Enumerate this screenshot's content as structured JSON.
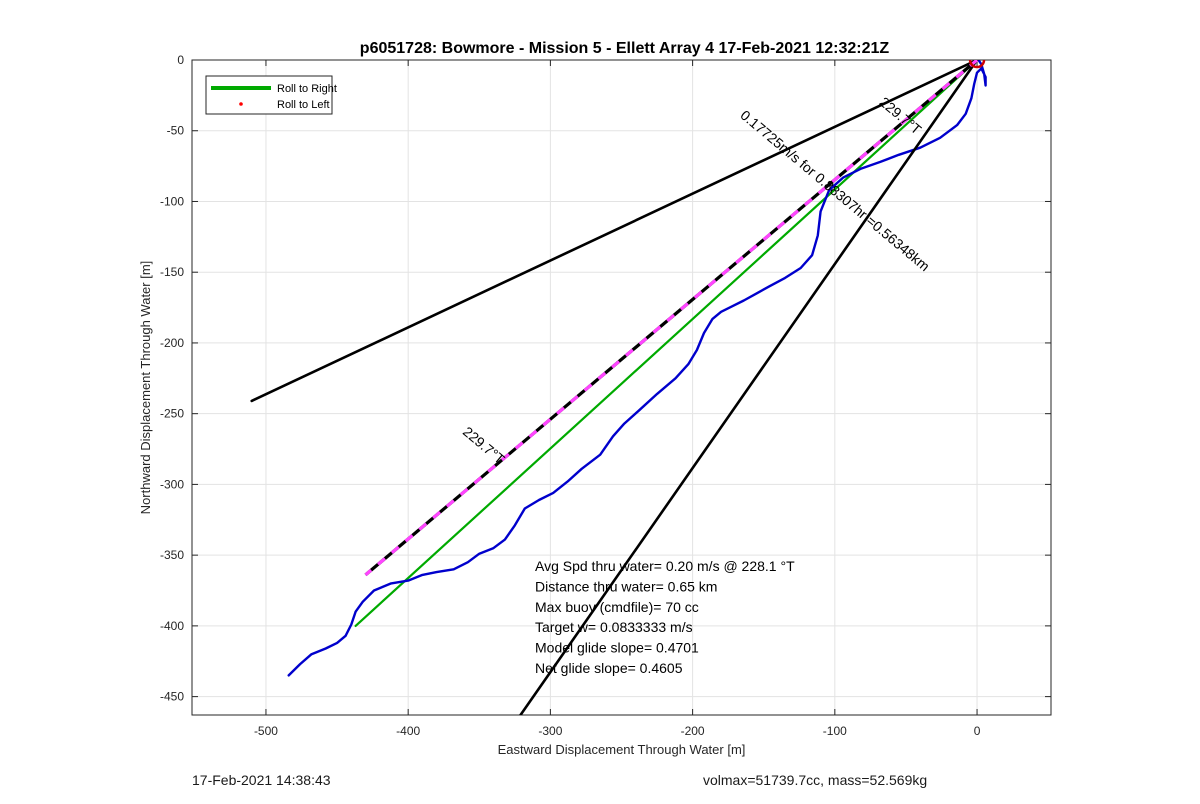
{
  "chart_data": {
    "type": "line",
    "title": "p6051728: Bowmore - Mission 5 - Ellett Array 4 17-Feb-2021 12:32:21Z",
    "xlabel": "Eastward Displacement Through Water [m]",
    "ylabel": "Northward Displacement Through Water [m]",
    "xlim": [
      -552,
      52
    ],
    "ylim": [
      -463,
      0
    ],
    "xticks": [
      -500,
      -400,
      -300,
      -200,
      -100,
      0
    ],
    "yticks": [
      0,
      -50,
      -100,
      -150,
      -200,
      -250,
      -300,
      -350,
      -400,
      -450
    ],
    "grid": true,
    "legend": {
      "location": "top-left",
      "entries": [
        {
          "label": "Roll to Right",
          "color": "#00aa00",
          "style": "line"
        },
        {
          "label": "Roll to Left",
          "color": "#ff0000",
          "style": "dot"
        }
      ]
    },
    "series": [
      {
        "name": "Roll to Right",
        "color": "#00aa00",
        "x": [
          0,
          -437
        ],
        "y": [
          0,
          -400
        ]
      },
      {
        "color": "#0000cc",
        "x": [
          -484,
          -476,
          -468,
          -458,
          -450,
          -444,
          -440,
          -437,
          -432,
          -424,
          -412,
          -400,
          -390,
          -380,
          -368,
          -358,
          -350,
          -340,
          -332,
          -325,
          -318,
          -308,
          -298,
          -288,
          -278,
          -265,
          -256,
          -248,
          -238,
          -225,
          -212,
          -203,
          -197,
          -192,
          -186,
          -180,
          -172,
          -164,
          -155,
          -146,
          -135,
          -124,
          -116,
          -112,
          -110,
          -104,
          -94,
          -82,
          -68,
          -55,
          -40,
          -26,
          -14,
          -8,
          -4,
          -2,
          0,
          3,
          6,
          6,
          5,
          3,
          1,
          0
        ],
        "y": [
          -435,
          -427,
          -420,
          -416,
          -412,
          -407,
          -399,
          -390,
          -383,
          -375,
          -370,
          -368,
          -364,
          -362,
          -360,
          -355,
          -349,
          -345,
          -339,
          -329,
          -317,
          -311,
          -306,
          -298,
          -289,
          -279,
          -266,
          -257,
          -248,
          -236,
          -225,
          -215,
          -205,
          -193,
          -183,
          -178,
          -174,
          -170,
          -165,
          -160,
          -154,
          -147,
          -138,
          -124,
          -107,
          -92,
          -83,
          -77,
          -72,
          -67,
          -62,
          -55,
          -46,
          -38,
          -27,
          -17,
          -9,
          -6,
          -12,
          -18,
          -10,
          -3,
          0,
          0
        ]
      },
      {
        "color": "#000000",
        "x": [
          0,
          -510
        ],
        "y": [
          0,
          -241
        ]
      },
      {
        "color": "#000000",
        "x": [
          0,
          -321
        ],
        "y": [
          0,
          -463
        ]
      },
      {
        "color": "#000000",
        "dash": "black-magenta",
        "x": [
          0,
          -430
        ],
        "y": [
          0,
          -364
        ]
      }
    ],
    "annotations": [
      {
        "text": "229.7°T",
        "x": -56,
        "y": -42,
        "angle": 40
      },
      {
        "text": "229.7°T",
        "x": -349,
        "y": -275,
        "angle": 40
      },
      {
        "text": "0.17725m/s for 0.88307hr =0.56348km",
        "x": -102,
        "y": -95,
        "angle": 40
      }
    ],
    "start_marker": {
      "x": 0,
      "y": 0,
      "color": "#cc0000"
    },
    "stats": [
      "Avg Spd thru water=  0.20 m/s @ 228.1 °T",
      "Distance thru water=  0.65 km",
      "Max buoy (cmdfile)= 70 cc",
      "Target w= 0.0833333 m/s",
      "Model glide slope= 0.4701",
      "Net glide slope= 0.4605"
    ]
  },
  "footer": {
    "left": "17-Feb-2021 14:38:43",
    "right": "volmax=51739.7cc, mass=52.569kg"
  }
}
